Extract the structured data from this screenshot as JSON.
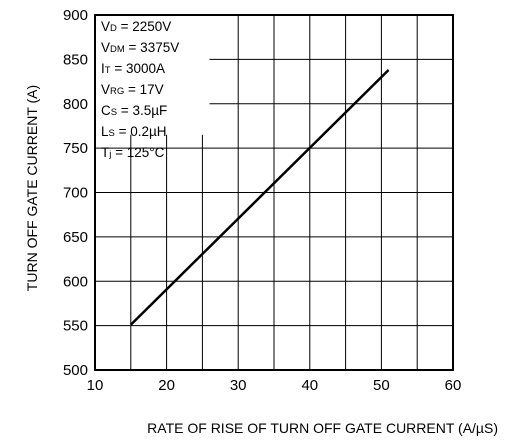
{
  "chart_data": {
    "type": "line",
    "title": "",
    "xlabel": "RATE OF RISE OF TURN OFF GATE CURRENT  (A/µS)",
    "ylabel": "TURN OFF GATE CURRENT  (A)",
    "xlim": [
      10,
      60
    ],
    "ylim": [
      500,
      900
    ],
    "xticks": [
      10,
      20,
      30,
      40,
      50,
      60
    ],
    "yticks": [
      500,
      550,
      600,
      650,
      700,
      750,
      800,
      850,
      900
    ],
    "grid": true,
    "series": [
      {
        "x": [
          15,
          51
        ],
        "y": [
          551,
          838
        ]
      }
    ],
    "conditions": [
      {
        "symbol": "V",
        "sub": "D",
        "rest": " = 2250V"
      },
      {
        "symbol": "V",
        "sub": "DM",
        "rest": " = 3375V"
      },
      {
        "symbol": "I",
        "sub": "T",
        "rest": " = 3000A"
      },
      {
        "symbol": "V",
        "sub": "RG",
        "rest": " = 17V"
      },
      {
        "symbol": "C",
        "sub": "S",
        "rest": " = 3.5µF"
      },
      {
        "symbol": "L",
        "sub": "S",
        "rest": " = 0.2µH"
      },
      {
        "symbol": "T",
        "sub": "j",
        "rest": " = 125°C"
      }
    ]
  }
}
